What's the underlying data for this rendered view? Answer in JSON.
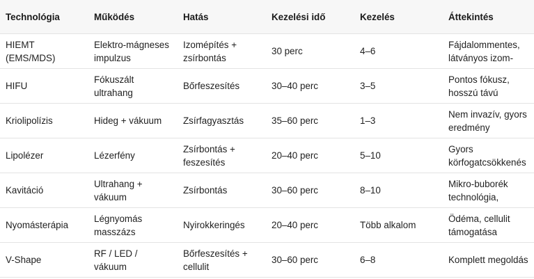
{
  "table": {
    "headers": [
      "Technológia",
      "Működés",
      "Hatás",
      "Kezelési idő",
      "Kezelés",
      "Áttekintés"
    ],
    "rows": [
      [
        "HIEMT (EMS/MDS)",
        "Elektro-mágneses impulzus",
        "Izomépítés + zsírbontás",
        "30 perc",
        "4–6",
        "Fájdalommentes, látványos izom-"
      ],
      [
        "HIFU",
        "Fókuszált ultrahang",
        "Bőrfeszesítés",
        "30–40 perc",
        "3–5",
        "Pontos fókusz, hosszú távú"
      ],
      [
        "Kriolipolízis",
        "Hideg + vákuum",
        "Zsírfagyasztás",
        "35–60 perc",
        "1–3",
        "Nem invazív, gyors eredmény"
      ],
      [
        "Lipolézer",
        "Lézerfény",
        "Zsírbontás + feszesítés",
        "20–40 perc",
        "5–10",
        "Gyors körfogatcsökkenés"
      ],
      [
        "Kavitáció",
        "Ultrahang + vákuum",
        "Zsírbontás",
        "30–60 perc",
        "8–10",
        "Mikro-buborék technológia,"
      ],
      [
        "Nyomásterápia",
        "Légnyomás masszázs",
        "Nyirokkeringés",
        "20–40 perc",
        "Több alkalom",
        "Ödéma, cellulit támogatása"
      ],
      [
        "V-Shape",
        "RF / LED / vákuum",
        "Bőrfeszesítés + cellulit",
        "30–60 perc",
        "6–8",
        "Komplett megoldás"
      ]
    ]
  }
}
